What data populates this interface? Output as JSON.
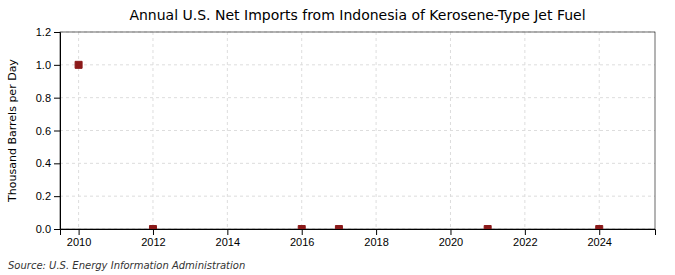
{
  "chart_data": {
    "type": "scatter",
    "title": "Annual U.S. Net Imports from Indonesia of Kerosene-Type Jet Fuel",
    "ylabel": "Thousand Barrels per Day",
    "source": "Source: U.S. Energy Information Administration",
    "x": [
      2010,
      2012,
      2016,
      2017,
      2021,
      2024
    ],
    "values": [
      1.0,
      0.0,
      0.0,
      0.0,
      0.0,
      0.0
    ],
    "color": "#8b1a1a",
    "marker": "square",
    "xlim": [
      2009.5,
      2025.5
    ],
    "ylim": [
      0.0,
      1.2
    ],
    "xticks": [
      2010,
      2012,
      2014,
      2016,
      2018,
      2020,
      2022,
      2024
    ],
    "yticks": [
      {
        "value": 0.0,
        "label": "0.0"
      },
      0.2,
      0.4,
      0.6,
      0.8,
      {
        "value": 1.0,
        "label": "1.0"
      },
      1.2
    ],
    "grid": true
  }
}
